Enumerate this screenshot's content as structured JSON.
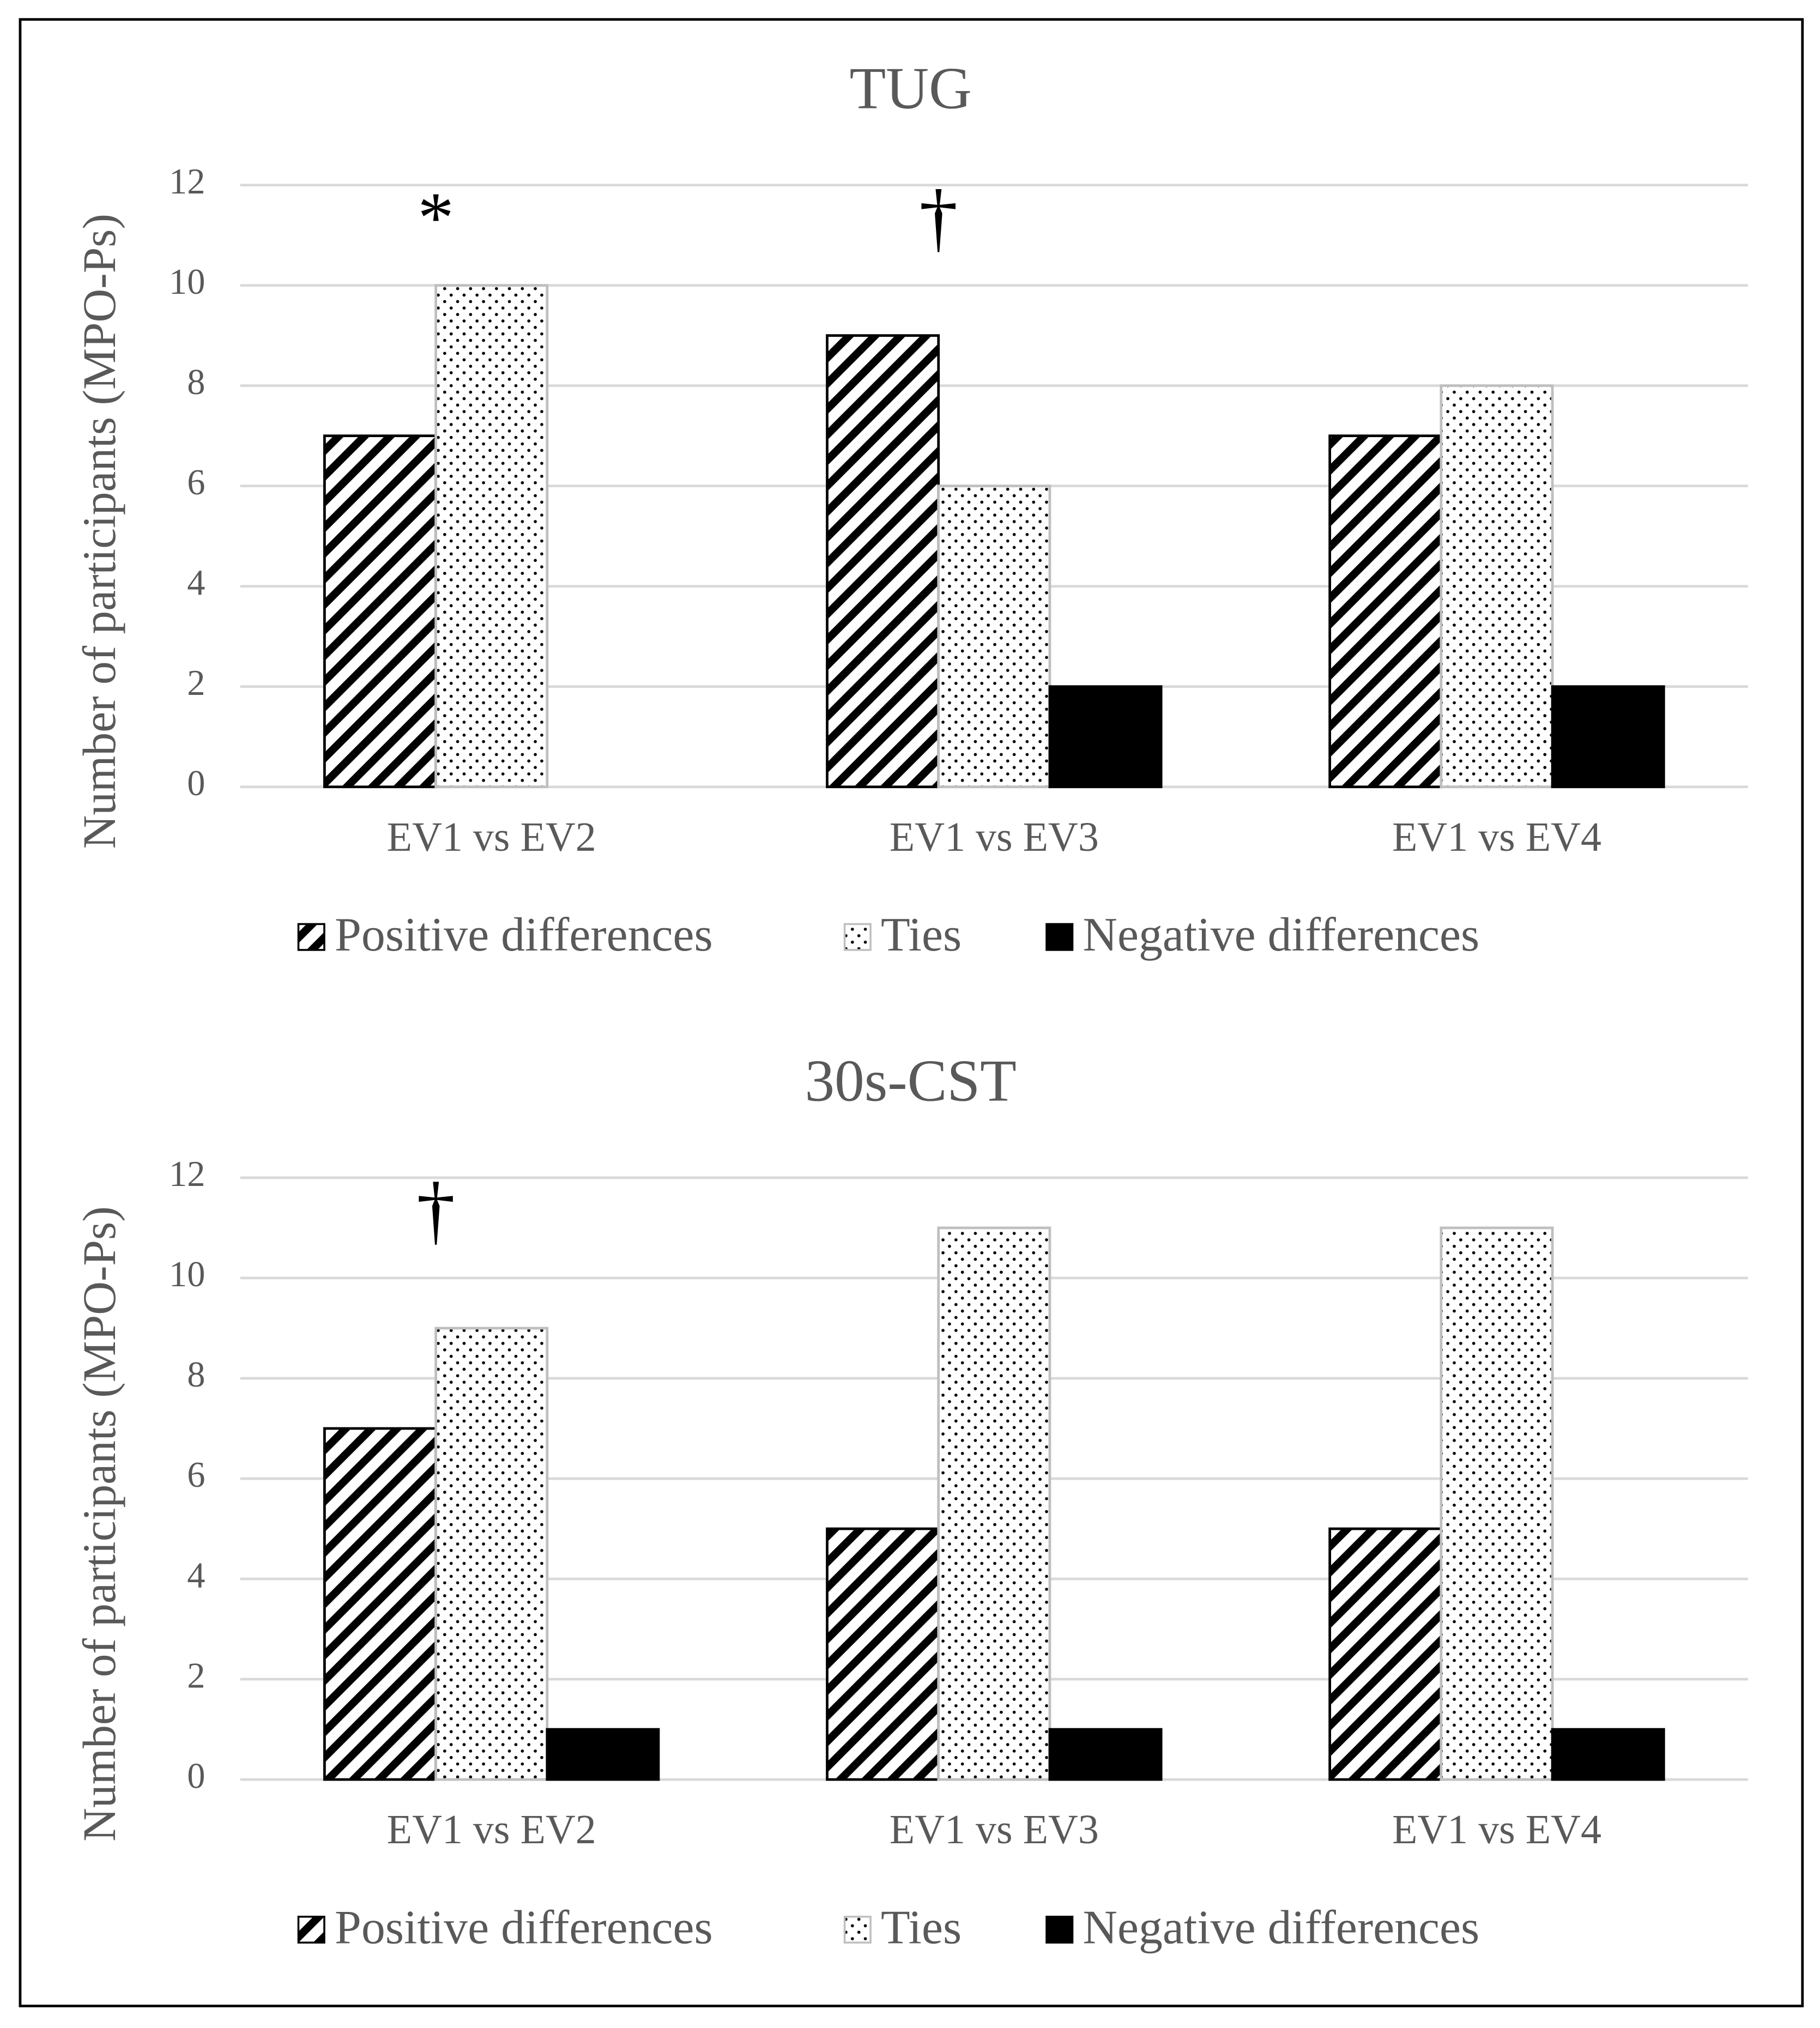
{
  "chart_data": [
    {
      "type": "bar",
      "title": "TUG",
      "y_label": "Number of participants (MPO-Ps)",
      "categories": [
        "EV1 vs EV2",
        "EV1 vs EV3",
        "EV1 vs EV4"
      ],
      "series": [
        {
          "name": "Positive differences",
          "color": "#000000",
          "pattern": "diagonal",
          "values": [
            7,
            9,
            7
          ]
        },
        {
          "name": "Ties",
          "color": "#ffffff",
          "pattern": "dots",
          "values": [
            10,
            6,
            8
          ]
        },
        {
          "name": "Negative differences",
          "color": "#000000",
          "pattern": "solid",
          "values": [
            0,
            2,
            2
          ]
        }
      ],
      "ylim": [
        0,
        12
      ],
      "yticks": [
        0,
        2,
        4,
        6,
        8,
        10,
        12
      ],
      "grid": true,
      "legend": "bottom",
      "annotations": [
        {
          "text": "*",
          "category": "EV1 vs EV2"
        },
        {
          "text": "†",
          "category": "EV1 vs EV3"
        }
      ]
    },
    {
      "type": "bar",
      "title": "30s-CST",
      "y_label": "Number of participants (MPO-Ps)",
      "categories": [
        "EV1 vs EV2",
        "EV1 vs EV3",
        "EV1 vs EV4"
      ],
      "series": [
        {
          "name": "Positive differences",
          "color": "#000000",
          "pattern": "diagonal",
          "values": [
            7,
            5,
            5
          ]
        },
        {
          "name": "Ties",
          "color": "#ffffff",
          "pattern": "dots",
          "values": [
            9,
            11,
            11
          ]
        },
        {
          "name": "Negative differences",
          "color": "#000000",
          "pattern": "solid",
          "values": [
            1,
            1,
            1
          ]
        }
      ],
      "ylim": [
        0,
        12
      ],
      "yticks": [
        0,
        2,
        4,
        6,
        8,
        10,
        12
      ],
      "grid": true,
      "legend": "bottom",
      "annotations": [
        {
          "text": "†",
          "category": "EV1 vs EV2"
        }
      ]
    }
  ]
}
